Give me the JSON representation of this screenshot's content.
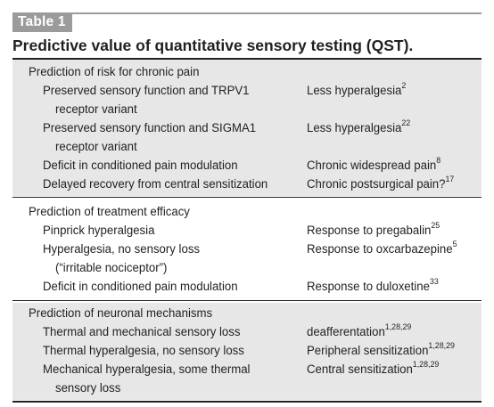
{
  "table": {
    "label": "Table 1",
    "title": "Predictive value of quantitative sensory testing (QST).",
    "sections": [
      {
        "heading": "Prediction of risk for chronic pain",
        "rows": [
          {
            "left": [
              "Preserved sensory function and TRPV1",
              "receptor variant"
            ],
            "right": "Less hyperalgesia",
            "ref": "2"
          },
          {
            "left": [
              "Preserved sensory function and SIGMA1",
              "receptor variant"
            ],
            "right": "Less hyperalgesia",
            "ref": "22"
          },
          {
            "left": [
              "Deficit in conditioned pain modulation"
            ],
            "right": "Chronic widespread pain",
            "ref": "8"
          },
          {
            "left": [
              "Delayed recovery from central sensitization"
            ],
            "right": "Chronic postsurgical pain?",
            "ref": "17"
          }
        ]
      },
      {
        "heading": "Prediction of treatment efficacy",
        "rows": [
          {
            "left": [
              "Pinprick hyperalgesia"
            ],
            "right": "Response to pregabalin",
            "ref": "25"
          },
          {
            "left": [
              "Hyperalgesia, no sensory loss",
              "(“irritable nociceptor”)"
            ],
            "right": "Response to oxcarbazepine",
            "ref": "5"
          },
          {
            "left": [
              "Deficit in conditioned pain modulation"
            ],
            "right": "Response to duloxetine",
            "ref": "33"
          }
        ]
      },
      {
        "heading": "Prediction of neuronal mechanisms",
        "rows": [
          {
            "left": [
              "Thermal and mechanical sensory loss"
            ],
            "right": "deafferentation",
            "ref": "1,28,29"
          },
          {
            "left": [
              "Thermal hyperalgesia, no sensory loss"
            ],
            "right": "Peripheral sensitization",
            "ref": "1,28,29"
          },
          {
            "left": [
              "Mechanical hyperalgesia, some thermal",
              "sensory loss"
            ],
            "right": "Central sensitization",
            "ref": "1,28,29"
          }
        ]
      }
    ]
  }
}
